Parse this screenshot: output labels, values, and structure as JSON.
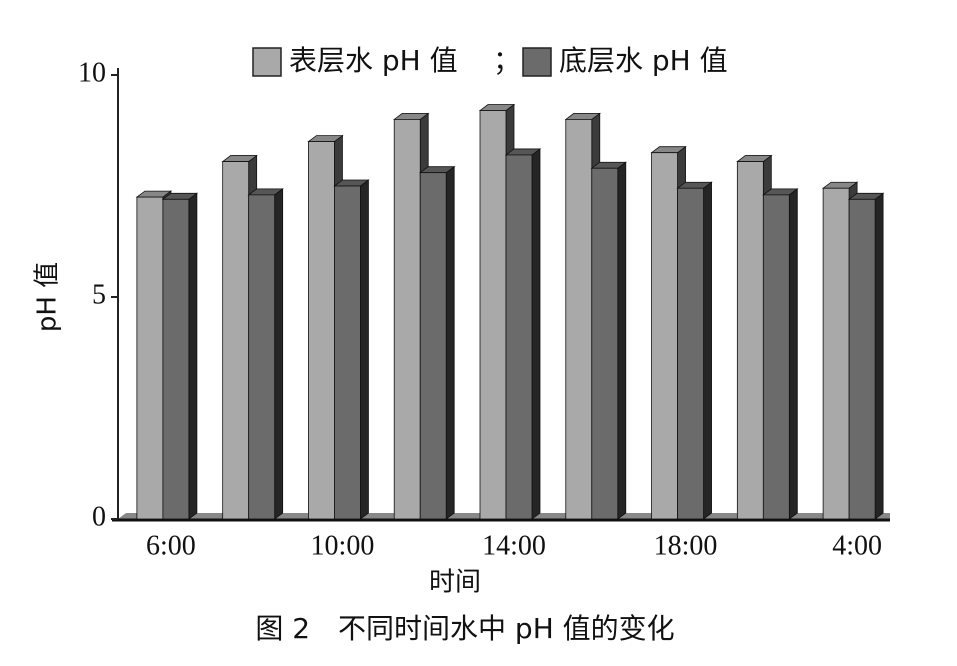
{
  "chart_data": {
    "type": "bar3d",
    "categories": [
      "6:00",
      null,
      "10:00",
      null,
      "14:00",
      null,
      "18:00",
      null,
      "4:00"
    ],
    "series": [
      {
        "name": "表层水 pH 值",
        "color": "#a9a9a9",
        "values": [
          7.25,
          8.05,
          8.5,
          9.0,
          9.2,
          9.0,
          8.25,
          8.05,
          7.45
        ]
      },
      {
        "name": "底层水 pH 值",
        "color": "#6b6b6b",
        "values": [
          7.2,
          7.3,
          7.5,
          7.8,
          8.2,
          7.9,
          7.45,
          7.3,
          7.2
        ]
      }
    ],
    "legend_separator": "；",
    "ylim": [
      0,
      10
    ],
    "yticks": [
      0,
      5,
      10
    ],
    "y_label": "pH 值",
    "x_label": "时间",
    "caption": "图 2　不同时间水中 pH 值的变化"
  }
}
